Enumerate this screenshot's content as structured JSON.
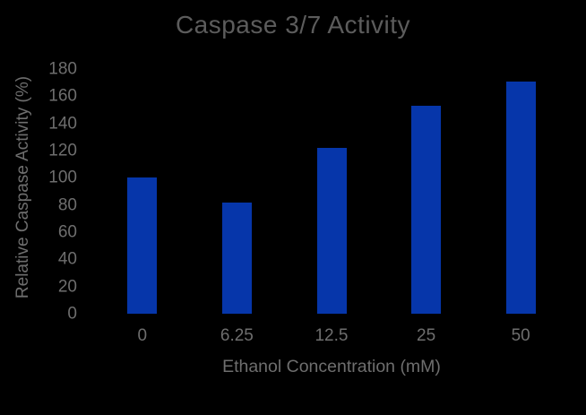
{
  "window": {
    "background_color": "#000000"
  },
  "chart_data": {
    "type": "bar",
    "title": "Caspase 3/7 Activity",
    "xlabel": "Ethanol Concentration (mM)",
    "ylabel": "Relative Caspase Activity (%)",
    "categories": [
      "0",
      "6.25",
      "12.5",
      "25",
      "50"
    ],
    "values": [
      100,
      82,
      122,
      153,
      171
    ],
    "ylim": [
      0,
      180
    ],
    "yticks": [
      0,
      20,
      40,
      60,
      80,
      100,
      120,
      140,
      160,
      180
    ],
    "grid": false,
    "legend": "none",
    "bar_color": "#0636AA",
    "title_color": "#5C5C5C",
    "axis_text_color": "#6E6E6E"
  }
}
